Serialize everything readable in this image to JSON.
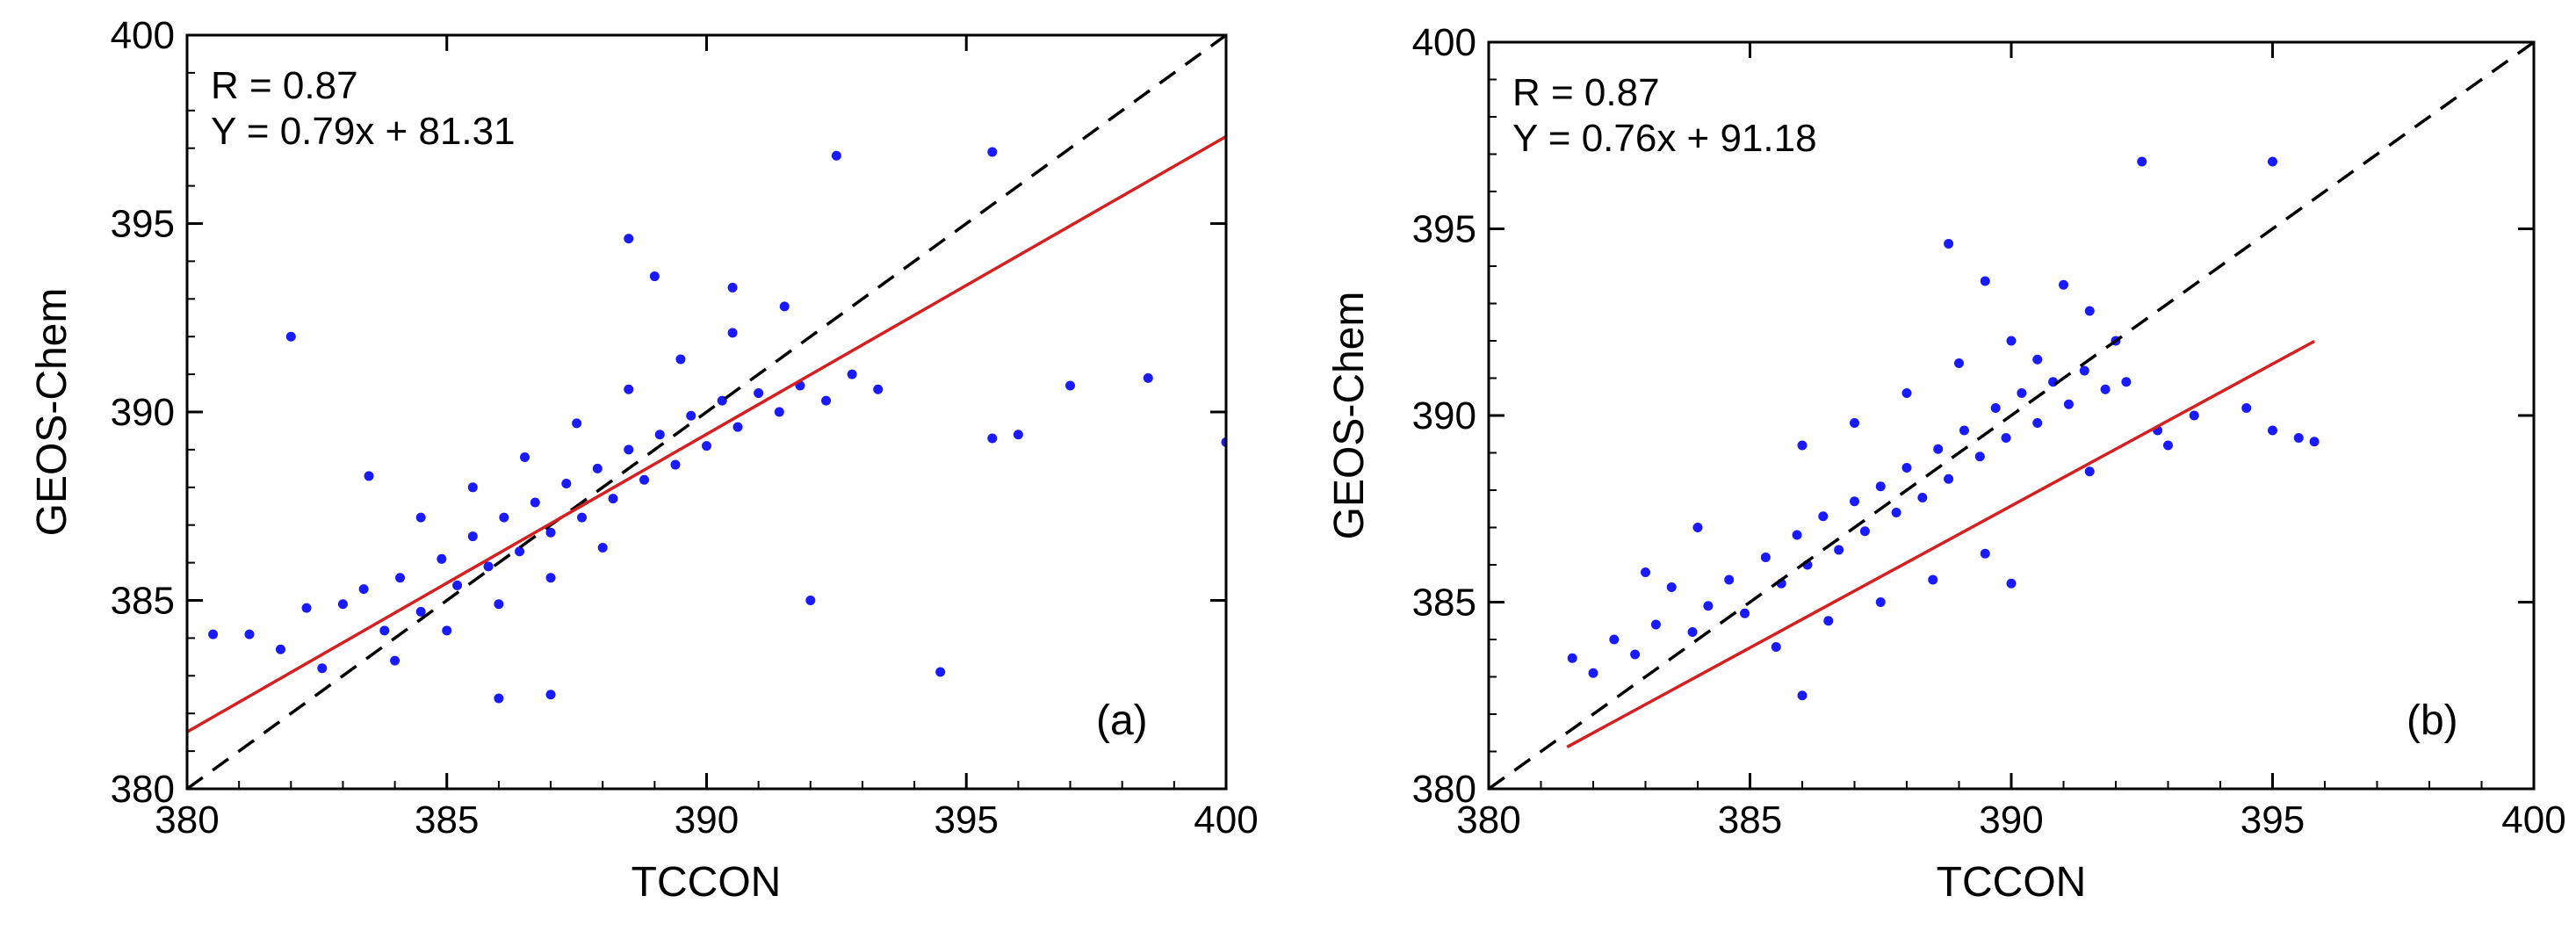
{
  "colors": {
    "points": "#1a1aff",
    "fit_line": "#d42020",
    "identity_line": "#000000",
    "axes": "#000000"
  },
  "chart_data": [
    {
      "type": "scatter",
      "panel_label": "(a)",
      "xlabel": "TCCON",
      "ylabel": "GEOS-Chem",
      "xlim": [
        380,
        400
      ],
      "ylim": [
        380,
        400
      ],
      "x_ticks": [
        "380",
        "385",
        "390",
        "395",
        "400"
      ],
      "y_ticks": [
        "380",
        "385",
        "390",
        "395",
        "400"
      ],
      "annotations": {
        "r_text": "R = 0.87",
        "fit_text": "Y = 0.79x + 81.31"
      },
      "fit": {
        "slope": 0.79,
        "intercept": 81.31,
        "x_range": [
          380,
          400
        ]
      },
      "identity_line": {
        "x_range": [
          380,
          400
        ]
      },
      "points": [
        [
          381.2,
          384.1
        ],
        [
          381.8,
          383.7
        ],
        [
          382.3,
          384.8
        ],
        [
          382.6,
          383.2
        ],
        [
          383.0,
          384.9
        ],
        [
          383.4,
          385.3
        ],
        [
          383.8,
          384.2
        ],
        [
          384.1,
          385.6
        ],
        [
          384.5,
          384.7
        ],
        [
          384.9,
          386.1
        ],
        [
          385.2,
          385.4
        ],
        [
          385.5,
          386.7
        ],
        [
          385.8,
          385.9
        ],
        [
          386.1,
          387.2
        ],
        [
          386.4,
          386.3
        ],
        [
          386.7,
          387.6
        ],
        [
          387.0,
          386.8
        ],
        [
          387.3,
          388.1
        ],
        [
          387.6,
          387.2
        ],
        [
          387.9,
          388.5
        ],
        [
          388.2,
          387.7
        ],
        [
          388.5,
          389.0
        ],
        [
          388.8,
          388.2
        ],
        [
          389.1,
          389.4
        ],
        [
          389.4,
          388.6
        ],
        [
          389.7,
          389.9
        ],
        [
          390.0,
          389.1
        ],
        [
          390.3,
          390.3
        ],
        [
          390.6,
          389.6
        ],
        [
          391.0,
          390.5
        ],
        [
          391.4,
          390.0
        ],
        [
          391.8,
          390.7
        ],
        [
          392.3,
          390.3
        ],
        [
          392.8,
          391.0
        ],
        [
          393.3,
          390.6
        ],
        [
          384.0,
          383.4
        ],
        [
          385.0,
          384.2
        ],
        [
          386.0,
          384.9
        ],
        [
          387.0,
          385.6
        ],
        [
          388.0,
          386.4
        ],
        [
          384.5,
          387.2
        ],
        [
          385.5,
          388.0
        ],
        [
          386.5,
          388.8
        ],
        [
          387.5,
          389.7
        ],
        [
          388.5,
          390.6
        ],
        [
          389.5,
          391.4
        ],
        [
          390.5,
          392.1
        ],
        [
          391.5,
          392.8
        ],
        [
          386.0,
          382.4
        ],
        [
          387.0,
          382.5
        ],
        [
          392.5,
          396.8
        ],
        [
          395.5,
          396.9
        ],
        [
          388.5,
          394.6
        ],
        [
          389.0,
          393.6
        ],
        [
          390.5,
          393.3
        ],
        [
          395.5,
          389.3
        ],
        [
          396.0,
          389.4
        ],
        [
          397.0,
          390.7
        ],
        [
          398.5,
          390.9
        ],
        [
          400.0,
          389.2
        ],
        [
          394.5,
          383.1
        ],
        [
          382.0,
          392.0
        ],
        [
          380.5,
          384.1
        ],
        [
          383.5,
          388.3
        ],
        [
          392.0,
          385.0
        ]
      ]
    },
    {
      "type": "scatter",
      "panel_label": "(b)",
      "xlabel": "TCCON",
      "ylabel": "GEOS-Chem",
      "xlim": [
        380,
        400
      ],
      "ylim": [
        380,
        400
      ],
      "x_ticks": [
        "380",
        "385",
        "390",
        "395",
        "400"
      ],
      "y_ticks": [
        "380",
        "385",
        "390",
        "395",
        "400"
      ],
      "annotations": {
        "r_text": "R = 0.87",
        "fit_text": "Y = 0.76x + 91.18"
      },
      "fit": {
        "slope": 0.76,
        "intercept": 91.18,
        "x_range": [
          381.5,
          395.8
        ]
      },
      "identity_line": {
        "x_range": [
          380,
          400
        ]
      },
      "points": [
        [
          381.6,
          383.5
        ],
        [
          382.0,
          383.1
        ],
        [
          382.4,
          384.0
        ],
        [
          382.8,
          383.6
        ],
        [
          383.2,
          384.4
        ],
        [
          383.5,
          385.4
        ],
        [
          383.9,
          384.2
        ],
        [
          384.2,
          384.9
        ],
        [
          384.6,
          385.6
        ],
        [
          384.9,
          384.7
        ],
        [
          385.3,
          386.2
        ],
        [
          385.6,
          385.5
        ],
        [
          385.9,
          386.8
        ],
        [
          386.1,
          386.0
        ],
        [
          386.4,
          387.3
        ],
        [
          386.7,
          386.4
        ],
        [
          387.0,
          387.7
        ],
        [
          387.2,
          386.9
        ],
        [
          387.5,
          388.1
        ],
        [
          387.8,
          387.4
        ],
        [
          388.0,
          388.6
        ],
        [
          388.3,
          387.8
        ],
        [
          388.6,
          389.1
        ],
        [
          388.8,
          388.3
        ],
        [
          389.1,
          389.6
        ],
        [
          389.4,
          388.9
        ],
        [
          389.7,
          390.2
        ],
        [
          389.9,
          389.4
        ],
        [
          390.2,
          390.6
        ],
        [
          390.5,
          389.8
        ],
        [
          390.8,
          390.9
        ],
        [
          391.1,
          390.3
        ],
        [
          391.4,
          391.2
        ],
        [
          391.8,
          390.7
        ],
        [
          392.2,
          390.9
        ],
        [
          386.0,
          389.2
        ],
        [
          387.0,
          389.8
        ],
        [
          388.0,
          390.6
        ],
        [
          389.0,
          391.4
        ],
        [
          390.0,
          392.0
        ],
        [
          385.5,
          383.8
        ],
        [
          386.5,
          384.5
        ],
        [
          387.5,
          385.0
        ],
        [
          388.5,
          385.6
        ],
        [
          389.5,
          386.3
        ],
        [
          391.0,
          393.5
        ],
        [
          391.5,
          392.8
        ],
        [
          389.5,
          393.6
        ],
        [
          388.8,
          394.6
        ],
        [
          392.5,
          396.8
        ],
        [
          395.0,
          396.8
        ],
        [
          394.5,
          390.2
        ],
        [
          395.0,
          389.6
        ],
        [
          395.5,
          389.4
        ],
        [
          395.8,
          389.3
        ],
        [
          393.0,
          389.2
        ],
        [
          392.8,
          389.6
        ],
        [
          386.0,
          382.5
        ],
        [
          390.0,
          385.5
        ],
        [
          384.0,
          387.0
        ],
        [
          383.0,
          385.8
        ],
        [
          391.5,
          388.5
        ],
        [
          393.5,
          390.0
        ],
        [
          392.0,
          392.0
        ],
        [
          390.5,
          391.5
        ]
      ]
    }
  ]
}
